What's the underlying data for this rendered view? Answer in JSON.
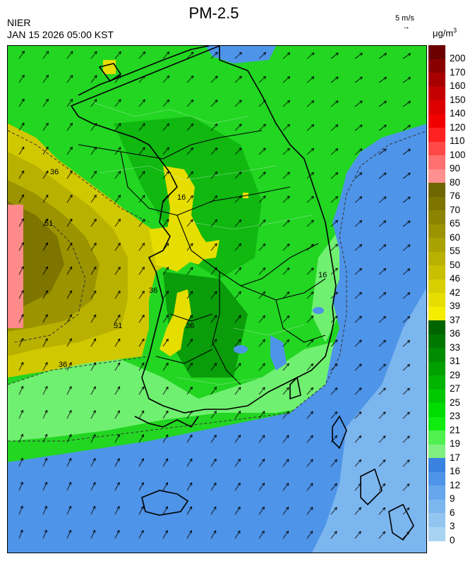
{
  "header": {
    "title": "PM-2.5",
    "agency": "NIER",
    "timestamp": "JAN 15 2026 05:00 KST",
    "wind_scale_label": "5 m/s",
    "unit_base": "μg/m",
    "unit_exp": "3"
  },
  "legend": {
    "bins": [
      {
        "label": "200",
        "color": "#6b0000"
      },
      {
        "label": "170",
        "color": "#8a0000"
      },
      {
        "label": "160",
        "color": "#a80000"
      },
      {
        "label": "150",
        "color": "#c40000"
      },
      {
        "label": "140",
        "color": "#dd0000"
      },
      {
        "label": "120",
        "color": "#f20000"
      },
      {
        "label": "110",
        "color": "#ff2020"
      },
      {
        "label": "100",
        "color": "#ff4848"
      },
      {
        "label": "90",
        "color": "#ff7070"
      },
      {
        "label": "80",
        "color": "#ff9090"
      },
      {
        "label": "76",
        "color": "#6e6600"
      },
      {
        "label": "70",
        "color": "#7d7500"
      },
      {
        "label": "65",
        "color": "#8c8400"
      },
      {
        "label": "60",
        "color": "#9b9300"
      },
      {
        "label": "55",
        "color": "#aaa200"
      },
      {
        "label": "50",
        "color": "#b9b100"
      },
      {
        "label": "46",
        "color": "#c8c000"
      },
      {
        "label": "42",
        "color": "#d7cf00"
      },
      {
        "label": "39",
        "color": "#e6de00"
      },
      {
        "label": "37",
        "color": "#f5ee00"
      },
      {
        "label": "36",
        "color": "#006400"
      },
      {
        "label": "33",
        "color": "#007800"
      },
      {
        "label": "31",
        "color": "#008c00"
      },
      {
        "label": "29",
        "color": "#00a000"
      },
      {
        "label": "27",
        "color": "#00b400"
      },
      {
        "label": "25",
        "color": "#00c800"
      },
      {
        "label": "23",
        "color": "#00dc00"
      },
      {
        "label": "21",
        "color": "#10ec10"
      },
      {
        "label": "19",
        "color": "#50f050"
      },
      {
        "label": "17",
        "color": "#80f080"
      },
      {
        "label": "16",
        "color": "#3a82e0"
      },
      {
        "label": "12",
        "color": "#4e94e8"
      },
      {
        "label": "9",
        "color": "#66a6ec"
      },
      {
        "label": "6",
        "color": "#7cb6ee"
      },
      {
        "label": "3",
        "color": "#92c6f0"
      },
      {
        "label": "0",
        "color": "#a8d4f2"
      }
    ]
  },
  "map": {
    "contour_labels": [
      "36",
      "16",
      "51",
      "36",
      "36",
      "16",
      "51",
      "36"
    ],
    "colors": {
      "sea_low": "#4e94e8",
      "sea_far": "#7cb6ee",
      "land_green": "#1fd01f",
      "dark_green": "#00a000",
      "light_green": "#70f070",
      "yellow": "#e6de00",
      "olive": "#b9b100",
      "dark_olive": "#8c8400",
      "pink": "#ff8a8a"
    }
  }
}
